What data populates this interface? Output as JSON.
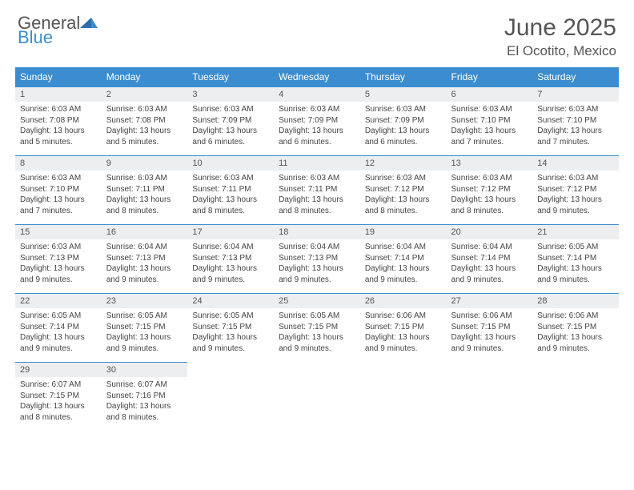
{
  "logo": {
    "name_a": "General",
    "name_b": "Blue"
  },
  "title": "June 2025",
  "location": "El Ocotito, Mexico",
  "colors": {
    "header_bg": "#3b8dd0",
    "header_fg": "#ffffff",
    "daynum_bg": "#eceeef",
    "text": "#555555",
    "border": "#3b8dd0"
  },
  "weekday_headers": [
    "Sunday",
    "Monday",
    "Tuesday",
    "Wednesday",
    "Thursday",
    "Friday",
    "Saturday"
  ],
  "days": [
    {
      "n": "1",
      "sr": "Sunrise: 6:03 AM",
      "ss": "Sunset: 7:08 PM",
      "d1": "Daylight: 13 hours",
      "d2": "and 5 minutes."
    },
    {
      "n": "2",
      "sr": "Sunrise: 6:03 AM",
      "ss": "Sunset: 7:08 PM",
      "d1": "Daylight: 13 hours",
      "d2": "and 5 minutes."
    },
    {
      "n": "3",
      "sr": "Sunrise: 6:03 AM",
      "ss": "Sunset: 7:09 PM",
      "d1": "Daylight: 13 hours",
      "d2": "and 6 minutes."
    },
    {
      "n": "4",
      "sr": "Sunrise: 6:03 AM",
      "ss": "Sunset: 7:09 PM",
      "d1": "Daylight: 13 hours",
      "d2": "and 6 minutes."
    },
    {
      "n": "5",
      "sr": "Sunrise: 6:03 AM",
      "ss": "Sunset: 7:09 PM",
      "d1": "Daylight: 13 hours",
      "d2": "and 6 minutes."
    },
    {
      "n": "6",
      "sr": "Sunrise: 6:03 AM",
      "ss": "Sunset: 7:10 PM",
      "d1": "Daylight: 13 hours",
      "d2": "and 7 minutes."
    },
    {
      "n": "7",
      "sr": "Sunrise: 6:03 AM",
      "ss": "Sunset: 7:10 PM",
      "d1": "Daylight: 13 hours",
      "d2": "and 7 minutes."
    },
    {
      "n": "8",
      "sr": "Sunrise: 6:03 AM",
      "ss": "Sunset: 7:10 PM",
      "d1": "Daylight: 13 hours",
      "d2": "and 7 minutes."
    },
    {
      "n": "9",
      "sr": "Sunrise: 6:03 AM",
      "ss": "Sunset: 7:11 PM",
      "d1": "Daylight: 13 hours",
      "d2": "and 8 minutes."
    },
    {
      "n": "10",
      "sr": "Sunrise: 6:03 AM",
      "ss": "Sunset: 7:11 PM",
      "d1": "Daylight: 13 hours",
      "d2": "and 8 minutes."
    },
    {
      "n": "11",
      "sr": "Sunrise: 6:03 AM",
      "ss": "Sunset: 7:11 PM",
      "d1": "Daylight: 13 hours",
      "d2": "and 8 minutes."
    },
    {
      "n": "12",
      "sr": "Sunrise: 6:03 AM",
      "ss": "Sunset: 7:12 PM",
      "d1": "Daylight: 13 hours",
      "d2": "and 8 minutes."
    },
    {
      "n": "13",
      "sr": "Sunrise: 6:03 AM",
      "ss": "Sunset: 7:12 PM",
      "d1": "Daylight: 13 hours",
      "d2": "and 8 minutes."
    },
    {
      "n": "14",
      "sr": "Sunrise: 6:03 AM",
      "ss": "Sunset: 7:12 PM",
      "d1": "Daylight: 13 hours",
      "d2": "and 9 minutes."
    },
    {
      "n": "15",
      "sr": "Sunrise: 6:03 AM",
      "ss": "Sunset: 7:13 PM",
      "d1": "Daylight: 13 hours",
      "d2": "and 9 minutes."
    },
    {
      "n": "16",
      "sr": "Sunrise: 6:04 AM",
      "ss": "Sunset: 7:13 PM",
      "d1": "Daylight: 13 hours",
      "d2": "and 9 minutes."
    },
    {
      "n": "17",
      "sr": "Sunrise: 6:04 AM",
      "ss": "Sunset: 7:13 PM",
      "d1": "Daylight: 13 hours",
      "d2": "and 9 minutes."
    },
    {
      "n": "18",
      "sr": "Sunrise: 6:04 AM",
      "ss": "Sunset: 7:13 PM",
      "d1": "Daylight: 13 hours",
      "d2": "and 9 minutes."
    },
    {
      "n": "19",
      "sr": "Sunrise: 6:04 AM",
      "ss": "Sunset: 7:14 PM",
      "d1": "Daylight: 13 hours",
      "d2": "and 9 minutes."
    },
    {
      "n": "20",
      "sr": "Sunrise: 6:04 AM",
      "ss": "Sunset: 7:14 PM",
      "d1": "Daylight: 13 hours",
      "d2": "and 9 minutes."
    },
    {
      "n": "21",
      "sr": "Sunrise: 6:05 AM",
      "ss": "Sunset: 7:14 PM",
      "d1": "Daylight: 13 hours",
      "d2": "and 9 minutes."
    },
    {
      "n": "22",
      "sr": "Sunrise: 6:05 AM",
      "ss": "Sunset: 7:14 PM",
      "d1": "Daylight: 13 hours",
      "d2": "and 9 minutes."
    },
    {
      "n": "23",
      "sr": "Sunrise: 6:05 AM",
      "ss": "Sunset: 7:15 PM",
      "d1": "Daylight: 13 hours",
      "d2": "and 9 minutes."
    },
    {
      "n": "24",
      "sr": "Sunrise: 6:05 AM",
      "ss": "Sunset: 7:15 PM",
      "d1": "Daylight: 13 hours",
      "d2": "and 9 minutes."
    },
    {
      "n": "25",
      "sr": "Sunrise: 6:05 AM",
      "ss": "Sunset: 7:15 PM",
      "d1": "Daylight: 13 hours",
      "d2": "and 9 minutes."
    },
    {
      "n": "26",
      "sr": "Sunrise: 6:06 AM",
      "ss": "Sunset: 7:15 PM",
      "d1": "Daylight: 13 hours",
      "d2": "and 9 minutes."
    },
    {
      "n": "27",
      "sr": "Sunrise: 6:06 AM",
      "ss": "Sunset: 7:15 PM",
      "d1": "Daylight: 13 hours",
      "d2": "and 9 minutes."
    },
    {
      "n": "28",
      "sr": "Sunrise: 6:06 AM",
      "ss": "Sunset: 7:15 PM",
      "d1": "Daylight: 13 hours",
      "d2": "and 9 minutes."
    },
    {
      "n": "29",
      "sr": "Sunrise: 6:07 AM",
      "ss": "Sunset: 7:15 PM",
      "d1": "Daylight: 13 hours",
      "d2": "and 8 minutes."
    },
    {
      "n": "30",
      "sr": "Sunrise: 6:07 AM",
      "ss": "Sunset: 7:16 PM",
      "d1": "Daylight: 13 hours",
      "d2": "and 8 minutes."
    }
  ]
}
